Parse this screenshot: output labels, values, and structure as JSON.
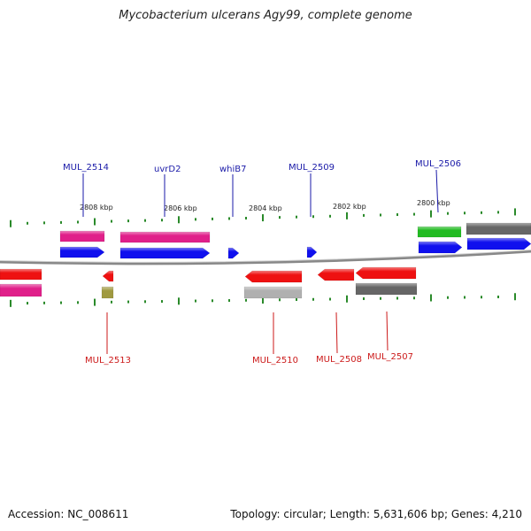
{
  "title": "Mycobacterium ulcerans Agy99, complete genome",
  "footer": {
    "accession": "Accession: NC_008611",
    "summary": "Topology: circular; Length: 5,631,606 bp; Genes: 4,210"
  },
  "ruler": [
    "2808 kbp",
    "2806 kbp",
    "2804 kbp",
    "2802 kbp",
    "2800 kbp"
  ],
  "labels_top": [
    "MUL_2514",
    "uvrD2",
    "whiB7",
    "MUL_2509",
    "MUL_2506"
  ],
  "labels_bottom": [
    "MUL_2513",
    "MUL_2510",
    "MUL_2508",
    "MUL_2507"
  ],
  "colors": {
    "label_top": "#1a1aa8",
    "label_bottom": "#cc1a1a",
    "tick": "#2a8a2a",
    "axis": "#777777",
    "red": "#ee1111",
    "blue": "#1010ee",
    "pink": "#e0208a",
    "gray": "#666666",
    "lightgray": "#b0b0b0",
    "green": "#22bb22",
    "olive": "#a09a40"
  }
}
